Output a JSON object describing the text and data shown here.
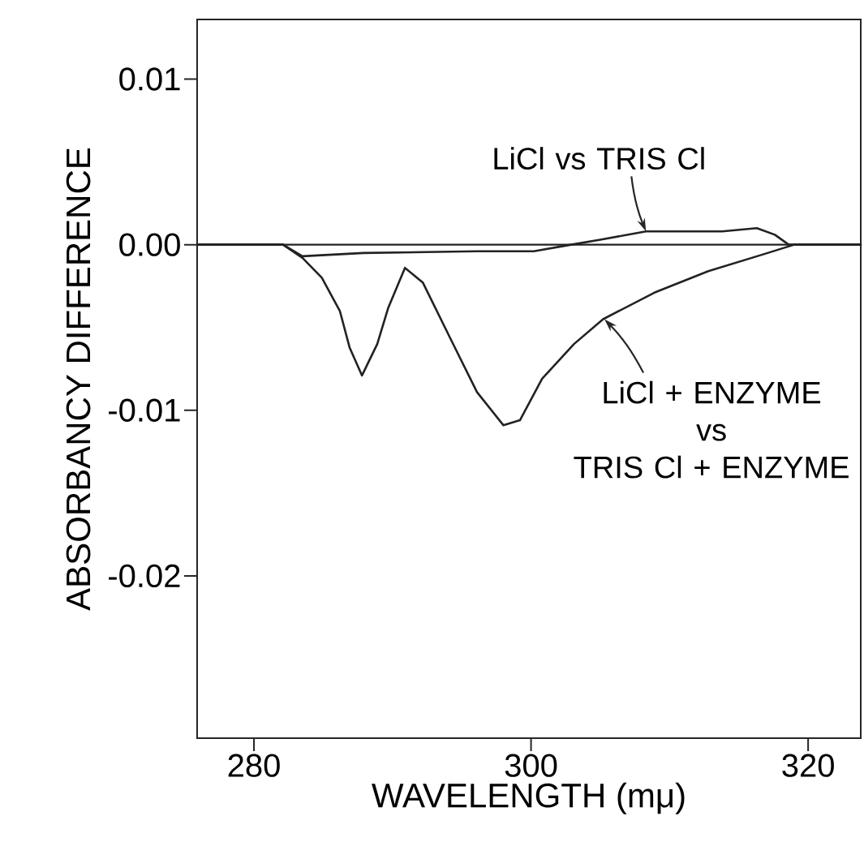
{
  "chart_data": {
    "type": "line",
    "xlabel": "WAVELENGTH (mμ)",
    "ylabel": "ABSORBANCY DIFFERENCE",
    "xlim": [
      275.9,
      323.8
    ],
    "ylim": [
      -0.0298,
      0.0136
    ],
    "xticks": [
      280,
      300,
      320
    ],
    "yticks": [
      {
        "value": 0.01,
        "label": "0.01"
      },
      {
        "value": 0.0,
        "label": "0.00"
      },
      {
        "value": -0.01,
        "label": "-0.01"
      },
      {
        "value": -0.02,
        "label": "-0.02"
      }
    ],
    "ref_lines": [
      {
        "axis": "y",
        "value": 0,
        "color": "#222222"
      }
    ],
    "series": [
      {
        "color": "#222222",
        "x": [
          275.9,
          282.1,
          283.5,
          287.9,
          296.1,
          300.2,
          302.9,
          305.0,
          308.3,
          313.8,
          316.3,
          317.6,
          318.6,
          323.8
        ],
        "values": [
          0,
          0,
          -0.0007,
          -0.0005,
          -0.0004,
          -0.0004,
          0,
          0.0003,
          0.0008,
          0.0008,
          0.001,
          0.0006,
          0,
          0
        ]
      },
      {
        "color": "#222222",
        "x": [
          275.9,
          282.1,
          283.5,
          284.9,
          286.2,
          286.9,
          287.8,
          288.9,
          289.7,
          290.9,
          292.2,
          294.2,
          296.1,
          298.0,
          299.2,
          300.8,
          303.1,
          305.2,
          308.9,
          312.8,
          316.7,
          319.0,
          323.8
        ],
        "values": [
          0,
          0,
          -0.0008,
          -0.002,
          -0.004,
          -0.0062,
          -0.0079,
          -0.006,
          -0.0038,
          -0.0014,
          -0.0023,
          -0.0057,
          -0.0089,
          -0.0109,
          -0.0106,
          -0.0081,
          -0.006,
          -0.0045,
          -0.0029,
          -0.0016,
          -0.0006,
          0,
          0
        ]
      }
    ],
    "annotations": [
      {
        "text": "LiCl vs TRIS Cl",
        "x": 308.3,
        "y": 0.0008
      },
      {
        "text": "LiCl + ENZYME\nvs\nTRIS Cl + ENZYME",
        "x": 305.3,
        "y": -0.0045
      }
    ]
  }
}
